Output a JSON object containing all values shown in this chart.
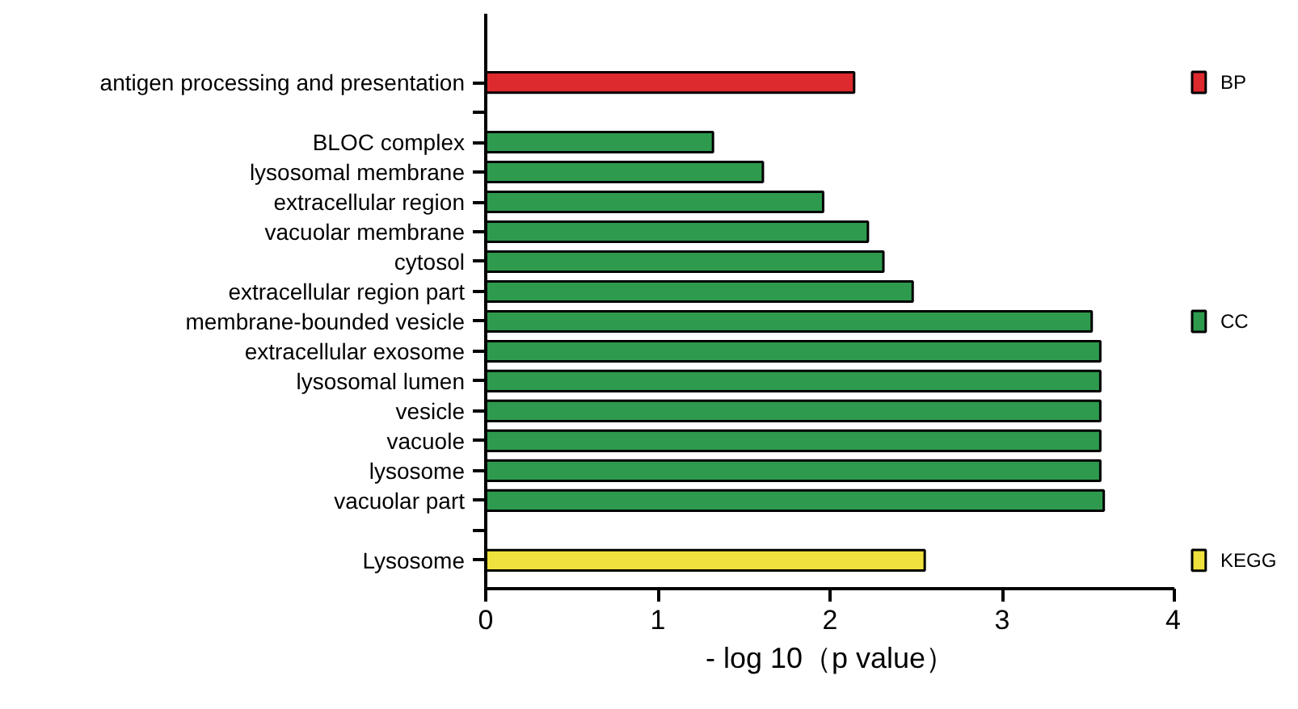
{
  "chart_data": {
    "type": "bar",
    "orientation": "horizontal",
    "xlabel": "- log 10（p value）",
    "categories": [
      "antigen processing and presentation",
      null,
      "BLOC complex",
      "lysosomal membrane",
      "extracellular region",
      "vacuolar membrane",
      "cytosol",
      "extracellular region part",
      "membrane-bounded vesicle",
      "extracellular exosome",
      "lysosomal lumen",
      "vesicle",
      "vacuole",
      "lysosome",
      "vacuolar part",
      null,
      "Lysosome"
    ],
    "series": [
      {
        "name": "BP",
        "color": "#dc2a2e",
        "values": [
          2.14,
          null,
          null,
          null,
          null,
          null,
          null,
          null,
          null,
          null,
          null,
          null,
          null,
          null,
          null,
          null,
          null
        ]
      },
      {
        "name": "CC",
        "color": "#2e9a4e",
        "values": [
          null,
          null,
          1.32,
          1.61,
          1.96,
          2.22,
          2.31,
          2.48,
          3.52,
          3.57,
          3.57,
          3.57,
          3.57,
          3.57,
          3.59,
          null,
          null
        ]
      },
      {
        "name": "KEGG",
        "color": "#f0e23e",
        "values": [
          null,
          null,
          null,
          null,
          null,
          null,
          null,
          null,
          null,
          null,
          null,
          null,
          null,
          null,
          null,
          null,
          2.55
        ]
      }
    ],
    "xlim": [
      0,
      4
    ],
    "xticks": [
      0,
      1,
      2,
      3,
      4
    ],
    "grid": false,
    "legend": "right"
  }
}
